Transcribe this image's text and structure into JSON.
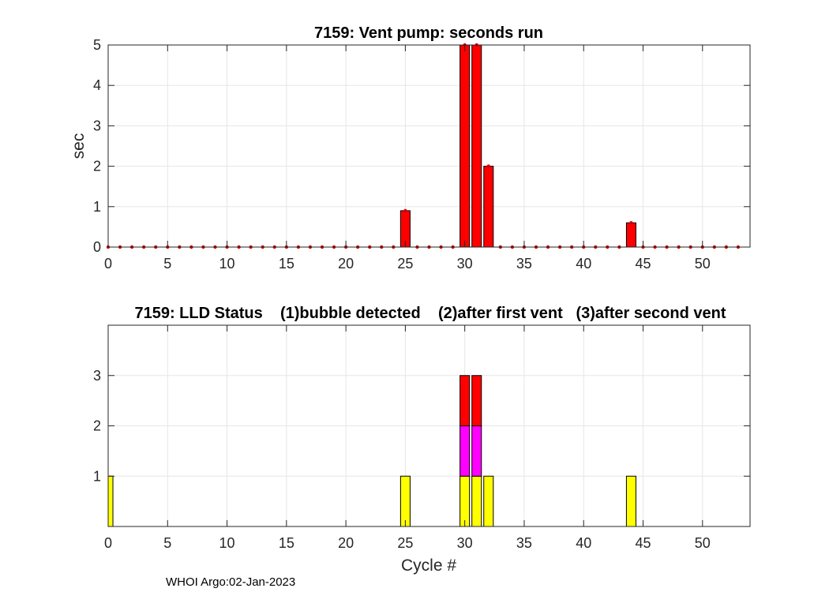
{
  "footer": "WHOI Argo:02-Jan-2023",
  "colors": {
    "vent_bar": "#ff0000",
    "vent_marker": "#d40000",
    "lld_bubble": "#ffff00",
    "lld_first_vent": "#ff00ff",
    "lld_second_vent": "#ff0000",
    "grid": "#e6e6e6",
    "axis": "#262626"
  },
  "chart_data": [
    {
      "type": "bar",
      "title": "7159: Vent pump: seconds run",
      "xlabel": "",
      "ylabel": "sec",
      "xlim": [
        0,
        54
      ],
      "ylim": [
        0,
        5
      ],
      "xticks": [
        "0",
        "5",
        "10",
        "15",
        "20",
        "25",
        "30",
        "35",
        "40",
        "45",
        "50"
      ],
      "yticks": [
        "0",
        "1",
        "2",
        "3",
        "4",
        "5"
      ],
      "grid": true,
      "markers_at_all_cycles": true,
      "marker_range": [
        0,
        53
      ],
      "x": [
        25,
        30,
        31,
        32,
        44
      ],
      "values": [
        0.9,
        5,
        5,
        2,
        0.6
      ]
    },
    {
      "type": "bar",
      "stacked": true,
      "title": "7159: LLD Status    (1)bubble detected    (2)after first vent   (3)after second vent",
      "xlabel": "Cycle #",
      "ylabel": "",
      "xlim": [
        0,
        54
      ],
      "ylim": [
        0,
        4
      ],
      "xticks": [
        "0",
        "5",
        "10",
        "15",
        "20",
        "25",
        "30",
        "35",
        "40",
        "45",
        "50"
      ],
      "yticks": [
        "1",
        "2",
        "3"
      ],
      "grid": true,
      "x": [
        0,
        25,
        30,
        31,
        32,
        44
      ],
      "series": [
        {
          "name": "(1)bubble detected",
          "values": [
            1,
            1,
            1,
            1,
            1,
            1
          ]
        },
        {
          "name": "(2)after first vent",
          "values": [
            0,
            0,
            1,
            1,
            0,
            0
          ]
        },
        {
          "name": "(3)after second vent",
          "values": [
            0,
            0,
            1,
            1,
            0,
            0
          ]
        }
      ]
    }
  ]
}
